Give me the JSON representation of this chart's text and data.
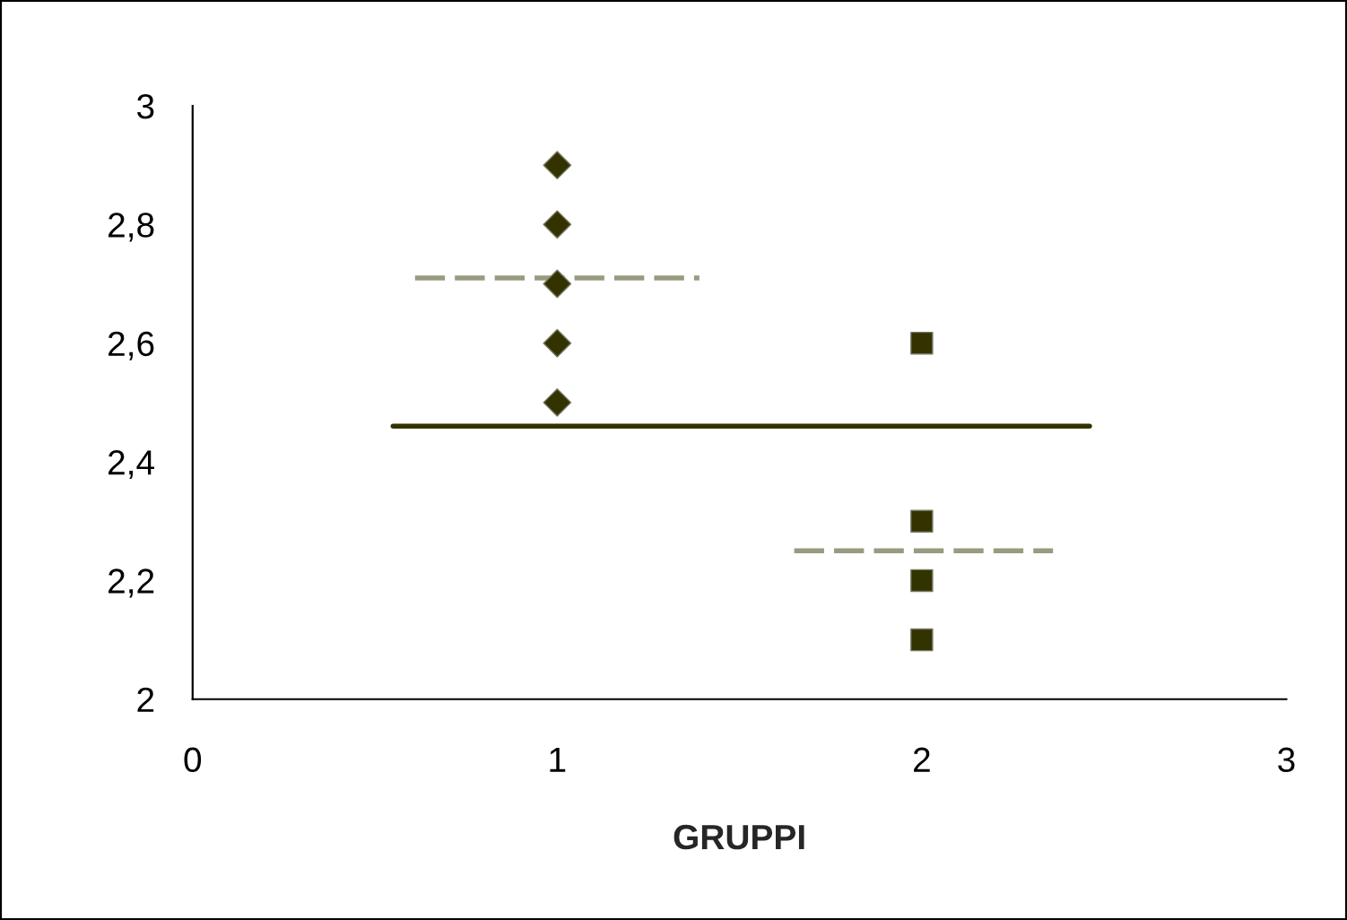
{
  "chart_data": {
    "type": "scatter",
    "xlabel": "GRUPPI",
    "xlim": [
      0,
      3
    ],
    "xticks": [
      0,
      1,
      2,
      3
    ],
    "ylim": [
      2,
      3
    ],
    "yticks": [
      {
        "value": 2,
        "label": "2"
      },
      {
        "value": 2.2,
        "label": "2,2"
      },
      {
        "value": 2.4,
        "label": "2,4"
      },
      {
        "value": 2.6,
        "label": "2,6"
      },
      {
        "value": 2.8,
        "label": "2,8"
      },
      {
        "value": 3,
        "label": "3"
      }
    ],
    "grid": false,
    "legend": false,
    "series": [
      {
        "marker": "diamond",
        "color": "#333300",
        "x": [
          1,
          1,
          1,
          1,
          1
        ],
        "values": [
          2.9,
          2.8,
          2.7,
          2.6,
          2.5
        ]
      },
      {
        "marker": "square",
        "color": "#333300",
        "x": [
          2,
          2,
          2,
          2
        ],
        "values": [
          2.6,
          2.3,
          2.2,
          2.1
        ]
      },
      {
        "type": "line",
        "line_style": "dashed",
        "marker": "none",
        "color": "#9a9a80",
        "x": [
          0.61,
          1.39
        ],
        "values": [
          2.71,
          2.71
        ]
      },
      {
        "type": "line",
        "line_style": "dashed",
        "marker": "none",
        "color": "#9a9a80",
        "x": [
          1.65,
          2.36
        ],
        "values": [
          2.25,
          2.25
        ]
      },
      {
        "type": "line",
        "line_style": "solid",
        "marker": "none",
        "color": "#333300",
        "x": [
          0.55,
          2.46
        ],
        "values": [
          2.46,
          2.46
        ]
      }
    ]
  }
}
